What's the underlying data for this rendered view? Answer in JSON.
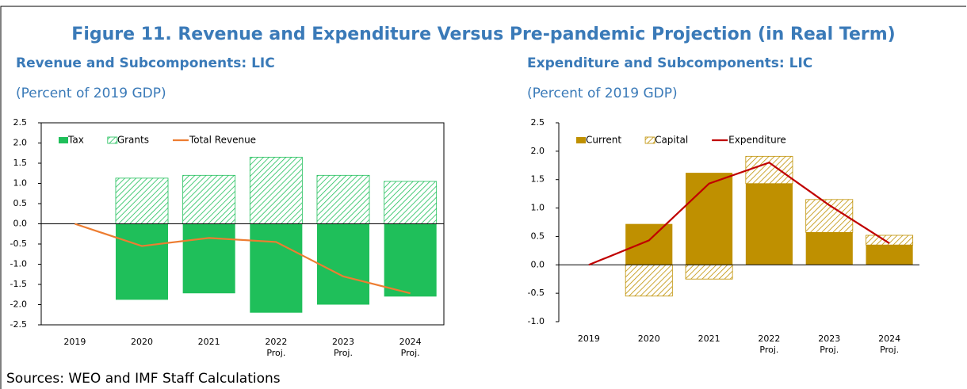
{
  "figure_title": "Figure 11. Revenue and Expenditure Versus Pre-pandemic Projection (in Real Term)",
  "source": "Sources: WEO and IMF Staff Calculations",
  "chart_data": [
    {
      "type": "stacked_bar",
      "title": "Revenue and Subcomponents: LIC",
      "subtitle": "(Percent of 2019 GDP)",
      "categories": [
        "2019",
        "2020",
        "2021",
        "2022\nProj.",
        "2023\nProj.",
        "2024\nProj."
      ],
      "series": [
        {
          "name": "Tax",
          "color": "#1fbf5a",
          "hatch": false,
          "values": [
            0,
            -1.88,
            -1.72,
            -2.2,
            -2.0,
            -1.8
          ]
        },
        {
          "name": "Grants",
          "color": "#1fbf5a",
          "hatch": true,
          "values": [
            0,
            1.13,
            1.2,
            1.65,
            1.2,
            1.05
          ]
        },
        {
          "name": "Total Revenue",
          "color": "#ed7d31",
          "type": "line",
          "values": [
            0,
            -0.55,
            -0.35,
            -0.45,
            -1.3,
            -1.72
          ]
        }
      ],
      "ylim": [
        -2.5,
        2.5
      ],
      "yticks": [
        2.5,
        {
          "value": 2,
          "label": "2.0"
        },
        1.5,
        {
          "value": 1,
          "label": "1.0"
        },
        0.5,
        {
          "value": 0,
          "label": "0.0"
        },
        -0.5,
        {
          "value": -1,
          "label": "-1.0"
        },
        -1.5,
        {
          "value": -2,
          "label": "-2.0"
        },
        -2.5
      ],
      "frame": true,
      "legend": "upper left"
    },
    {
      "type": "stacked_bar",
      "title": "Expenditure and Subcomponents: LIC",
      "subtitle": "(Percent of 2019 GDP)",
      "categories": [
        "2019",
        "2020",
        "2021",
        "2022\nProj.",
        "2023\nProj.",
        "2024\nProj."
      ],
      "series": [
        {
          "name": "Current",
          "color": "#bf9000",
          "hatch": false,
          "values": [
            0,
            0.72,
            1.62,
            1.43,
            0.57,
            0.35
          ]
        },
        {
          "name": "Capital",
          "color": "#bf9000",
          "hatch": true,
          "values": [
            0,
            -0.55,
            -0.25,
            0.48,
            0.58,
            0.17
          ]
        },
        {
          "name": "Expenditure",
          "color": "#c00000",
          "type": "line",
          "values": [
            0,
            0.43,
            1.43,
            1.8,
            1.05,
            0.38
          ]
        }
      ],
      "ylim": [
        -1,
        2.5
      ],
      "yticks": [
        2.5,
        {
          "value": 2,
          "label": "2.0"
        },
        1.5,
        {
          "value": 1,
          "label": "1.0"
        },
        0.5,
        {
          "value": 0,
          "label": "0.0"
        },
        -0.5,
        {
          "value": -1,
          "label": "-1.0"
        }
      ],
      "frame": false,
      "legend": "upper left"
    }
  ]
}
